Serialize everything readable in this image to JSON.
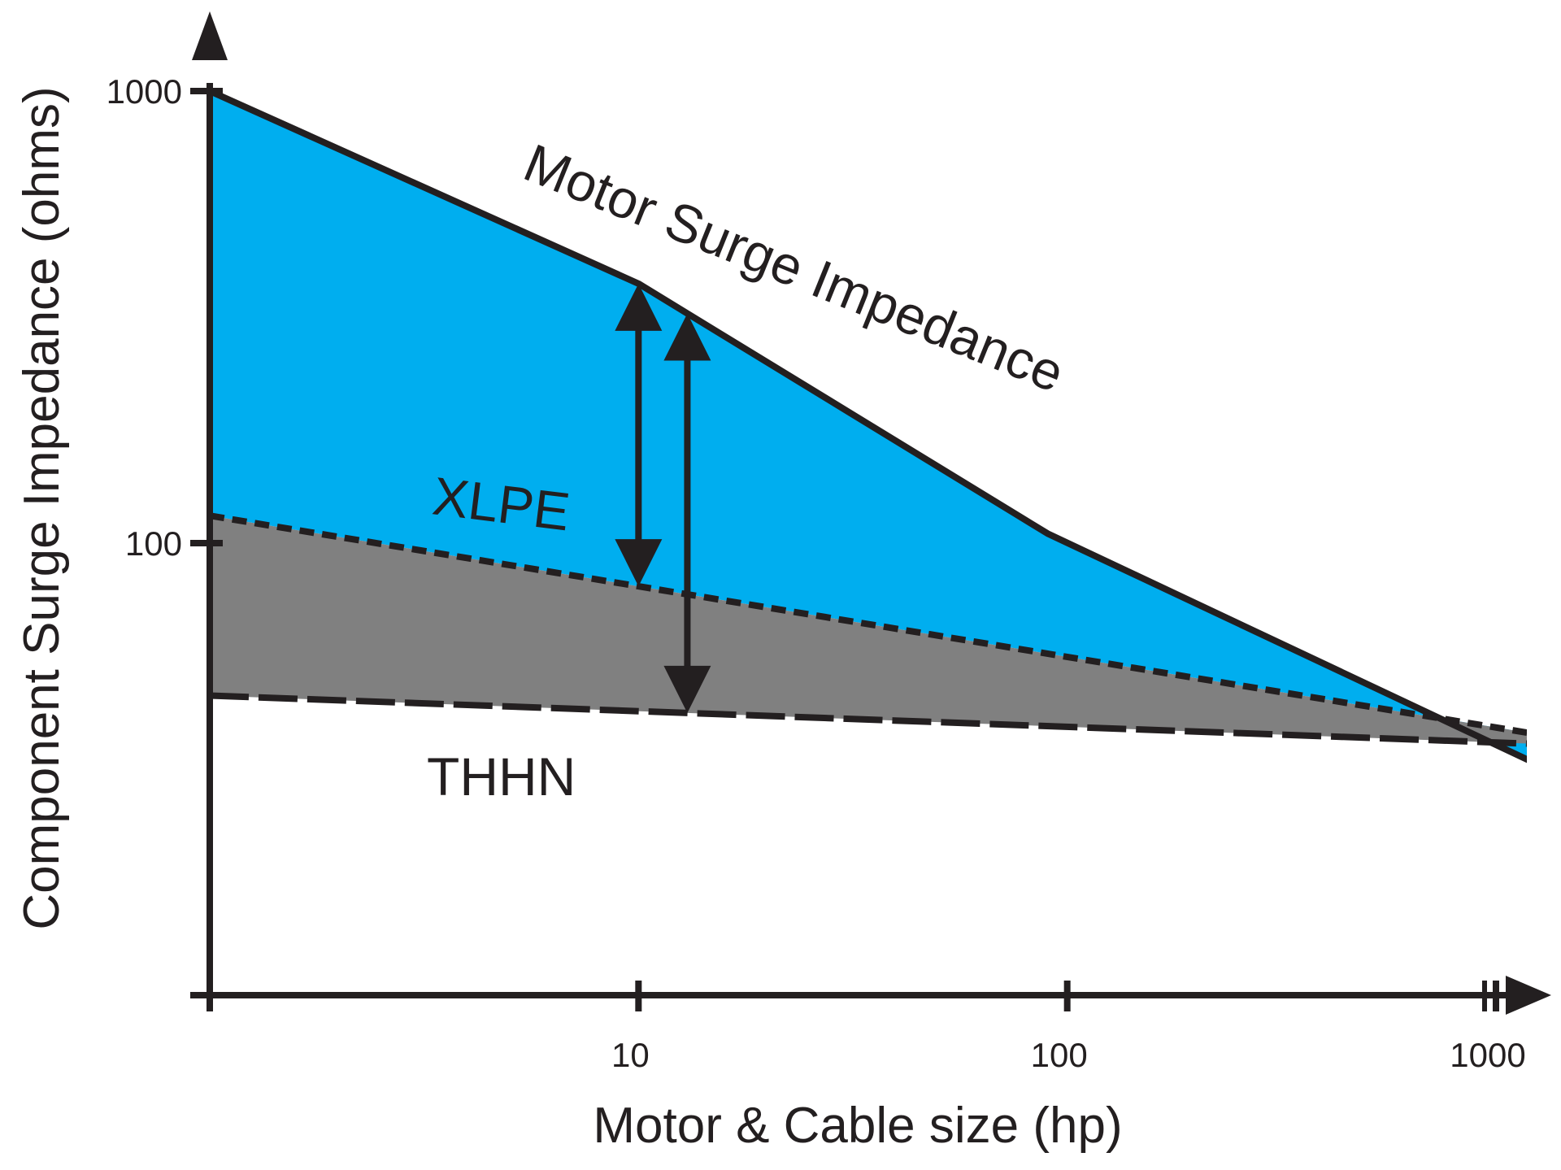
{
  "chart_data": {
    "type": "area",
    "xlabel": "Motor & Cable size (hp)",
    "ylabel": "Component Surge Impedance (ohms)",
    "x_scale": "log",
    "y_scale": "log",
    "xlim": [
      1,
      1000
    ],
    "ylim": [
      10,
      1000
    ],
    "x_ticks": [
      {
        "value": 10,
        "label": "10"
      },
      {
        "value": 100,
        "label": "100"
      },
      {
        "value": 1000,
        "label": "1000"
      }
    ],
    "y_ticks": [
      {
        "value": 1000,
        "label": "1000"
      },
      {
        "value": 100,
        "label": "100"
      }
    ],
    "grid": false,
    "legend": "none",
    "series": [
      {
        "name": "Motor Surge Impedance",
        "line_style": "solid",
        "points": [
          [
            1,
            1000
          ],
          [
            10,
            375
          ],
          [
            90,
            105
          ],
          [
            1200,
            33
          ]
        ]
      },
      {
        "name": "XLPE",
        "line_style": "short-dash",
        "points": [
          [
            1,
            115
          ],
          [
            1200,
            38
          ]
        ]
      },
      {
        "name": "THHN",
        "line_style": "long-dash",
        "points": [
          [
            1,
            46
          ],
          [
            1200,
            36
          ]
        ]
      }
    ],
    "shaded_regions": [
      {
        "between": [
          "Motor Surge Impedance",
          "XLPE"
        ],
        "color": "#00aeef"
      },
      {
        "between": [
          "XLPE",
          "THHN"
        ],
        "color": "#808080"
      }
    ],
    "annotations": [
      {
        "type": "double-arrow",
        "x": 10,
        "from": "Motor Surge Impedance",
        "to": "XLPE"
      },
      {
        "type": "double-arrow",
        "x": 13,
        "from": "Motor Surge Impedance",
        "to": "THHN"
      }
    ],
    "colors": {
      "motor_region": "#00aeef",
      "cable_region": "#808080",
      "ink": "#231f20"
    }
  }
}
